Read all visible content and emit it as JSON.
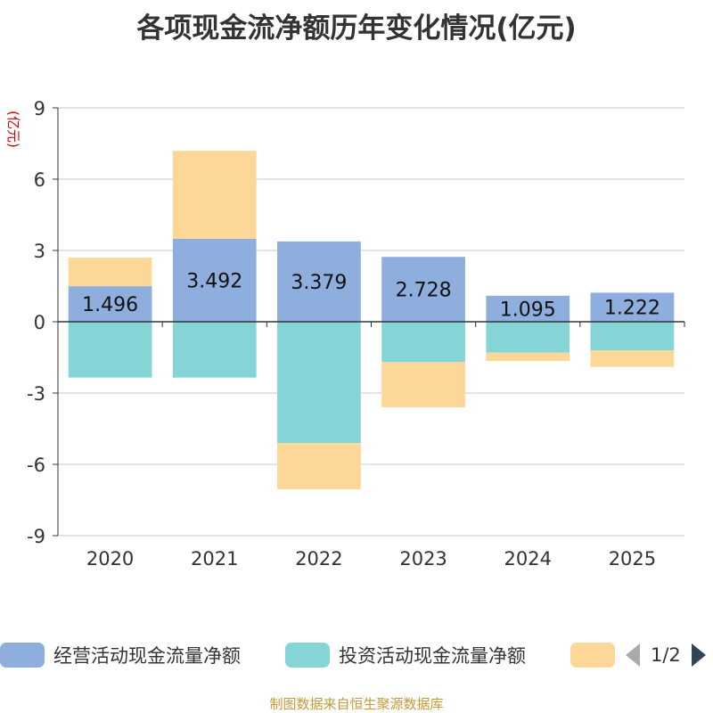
{
  "chart_data": {
    "type": "bar",
    "stacked": true,
    "title": "各项现金流净额历年变化情况(亿元)",
    "ylabel": "(亿元)",
    "categories": [
      "2020",
      "2021",
      "2022",
      "2023",
      "2024",
      "2025"
    ],
    "ylim": [
      -9,
      9
    ],
    "yticks": [
      -9,
      -6,
      -3,
      0,
      3,
      6,
      9
    ],
    "grid": true,
    "series": [
      {
        "name": "经营活动现金流量净额",
        "color": "#8eaede",
        "values": [
          1.496,
          3.492,
          3.379,
          2.728,
          1.095,
          1.222
        ],
        "labels": [
          "1.496",
          "3.492",
          "3.379",
          "2.728",
          "1.095",
          "1.222"
        ]
      },
      {
        "name": "投资活动现金流量净额",
        "color": "#86d5d6",
        "values": [
          -2.35,
          -2.35,
          -5.1,
          -1.7,
          -1.3,
          -1.2
        ]
      },
      {
        "name": "",
        "color": "#fdd797",
        "values": [
          1.2,
          3.7,
          -1.95,
          -1.9,
          -0.35,
          -0.7
        ]
      }
    ]
  },
  "legend": {
    "items": [
      {
        "label": "经营活动现金流量净额",
        "color": "#8eaede"
      },
      {
        "label": "投资活动现金流量净额",
        "color": "#86d5d6"
      },
      {
        "label": "",
        "color": "#fdd797"
      }
    ],
    "pager": "1/2"
  },
  "source": "制图数据来自恒生聚源数据库"
}
